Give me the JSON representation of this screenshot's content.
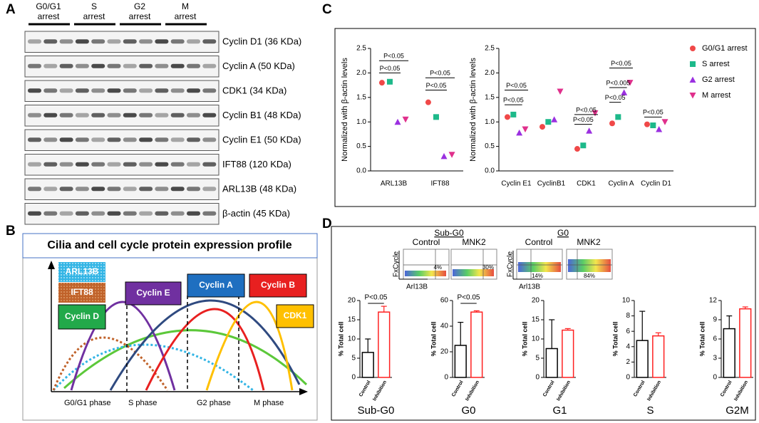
{
  "panel_labels": [
    "A",
    "B",
    "C",
    "D"
  ],
  "blot": {
    "groups": [
      "G0/G1\narrest",
      "S\narrest",
      "G2\narrest",
      "M\narrest"
    ],
    "proteins": [
      "Cyclin D1 (36 KDa)",
      "Cyclin A (50 KDa)",
      "CDK1 (34 KDa)",
      "Cyclin B1 (48 KDa)",
      "Cyclin E1 (50 KDa)",
      "IFT88 (120 KDa)",
      "ARL13B (48 KDa)",
      "β-actin (45 KDa)"
    ]
  },
  "diagram": {
    "title": "Cilia and cell cycle protein expression profile",
    "boxes": [
      "ARL13B",
      "IFT88",
      "Cyclin D",
      "Cyclin E",
      "Cyclin A",
      "Cyclin B",
      "CDK1"
    ],
    "phases": [
      "G0/G1 phase",
      "S phase",
      "G2 phase",
      "M phase"
    ]
  },
  "flow": {
    "titles": [
      "Sub-G0",
      "G0"
    ],
    "conditions": [
      "Control",
      "MNK2",
      "Control",
      "MNK2"
    ],
    "percents": [
      "4%",
      "30%",
      "14%",
      "84%"
    ],
    "ylabel": "FxCycle",
    "xlabel": "Arl13B"
  },
  "chart_data": [
    {
      "type": "scatter",
      "ylabel": "Normalized with β-actin levels",
      "categories": [
        "ARL13B",
        "IFT88"
      ],
      "series": [
        {
          "color": "#f04848",
          "values": [
            1.8,
            1.4
          ]
        },
        {
          "color": "#1db98a",
          "values": [
            1.82,
            1.1
          ]
        },
        {
          "color": "#9b30e0",
          "values": [
            1.0,
            0.3
          ]
        },
        {
          "color": "#e0308c",
          "values": [
            1.05,
            0.33
          ]
        }
      ],
      "ylim": [
        0,
        2.5
      ],
      "yticks": [
        {
          "value": 0,
          "label": "0.0"
        },
        0.5,
        {
          "value": 1,
          "label": "1.0"
        },
        1.5,
        {
          "value": 2,
          "label": "2.0"
        },
        2.5
      ],
      "annotations": [
        "P<0.05",
        "P<0.05",
        "P<0.05",
        "P<0.05"
      ]
    },
    {
      "type": "scatter",
      "ylabel": "Normalized with β-actin levels",
      "categories": [
        "Cyclin E1",
        "CyclinB1",
        "CDK1",
        "Cyclin A",
        "Cyclin D1"
      ],
      "series": [
        {
          "name": "G0/G1 arrest",
          "color": "#f04848",
          "values": [
            1.1,
            0.9,
            0.45,
            0.97,
            0.95
          ]
        },
        {
          "name": "S arrest",
          "color": "#1db98a",
          "values": [
            1.15,
            1.0,
            0.52,
            1.1,
            0.93
          ]
        },
        {
          "name": "G2 arrest",
          "color": "#9b30e0",
          "values": [
            0.78,
            1.05,
            0.82,
            1.6,
            0.85
          ]
        },
        {
          "name": "M arrest",
          "color": "#e0308c",
          "values": [
            0.85,
            1.62,
            1.18,
            1.8,
            1.0
          ]
        }
      ],
      "ylim": [
        0,
        2.5
      ],
      "yticks": [
        {
          "value": 0,
          "label": "0.0"
        },
        0.5,
        {
          "value": 1,
          "label": "1.0"
        },
        1.5,
        {
          "value": 2,
          "label": "2.0"
        },
        2.5
      ],
      "annotations": [
        "P<0.05",
        "P<0.05",
        "P<0.05",
        "P<0.05",
        "P<0.05",
        "P<0.005",
        "P<0.05",
        "P<0.05"
      ]
    },
    {
      "type": "bar",
      "title": "Sub-G0",
      "ylabel": "% Total cell",
      "categories": [
        "Control",
        "Inhibition"
      ],
      "values": [
        6.5,
        17
      ],
      "errors": [
        3.5,
        1.5
      ],
      "colors": [
        "#000000",
        "#ff2020"
      ],
      "ylim": [
        0,
        20
      ],
      "yticks": [
        0,
        5,
        10,
        15,
        20
      ],
      "annotations": [
        "P<0.05"
      ]
    },
    {
      "type": "bar",
      "title": "G0",
      "ylabel": "% Total cell",
      "categories": [
        "Control",
        "Inhibition"
      ],
      "values": [
        25,
        51
      ],
      "errors": [
        18,
        1
      ],
      "colors": [
        "#000000",
        "#ff2020"
      ],
      "ylim": [
        0,
        60
      ],
      "yticks": [
        0,
        20,
        40,
        60
      ],
      "annotations": [
        "P<0.05"
      ]
    },
    {
      "type": "bar",
      "title": "G1",
      "ylabel": "% Total cell",
      "categories": [
        "Control",
        "Inhibition"
      ],
      "values": [
        7.5,
        12.3
      ],
      "errors": [
        7.5,
        0.4
      ],
      "colors": [
        "#000000",
        "#ff2020"
      ],
      "ylim": [
        0,
        20
      ],
      "yticks": [
        0,
        5,
        10,
        15,
        20
      ]
    },
    {
      "type": "bar",
      "title": "S",
      "ylabel": "% Total cell",
      "categories": [
        "Control",
        "Inhibition"
      ],
      "values": [
        4.8,
        5.4
      ],
      "errors": [
        3.8,
        0.4
      ],
      "colors": [
        "#000000",
        "#ff2020"
      ],
      "ylim": [
        0,
        10
      ],
      "yticks": [
        0,
        2,
        4,
        6,
        8,
        10
      ]
    },
    {
      "type": "bar",
      "title": "G2M",
      "ylabel": "% Total cell",
      "categories": [
        "Control",
        "Inhibition"
      ],
      "values": [
        7.6,
        10.7
      ],
      "errors": [
        2,
        0.3
      ],
      "colors": [
        "#000000",
        "#ff2020"
      ],
      "ylim": [
        0,
        12
      ],
      "yticks": [
        0,
        3,
        6,
        9,
        12
      ]
    }
  ]
}
